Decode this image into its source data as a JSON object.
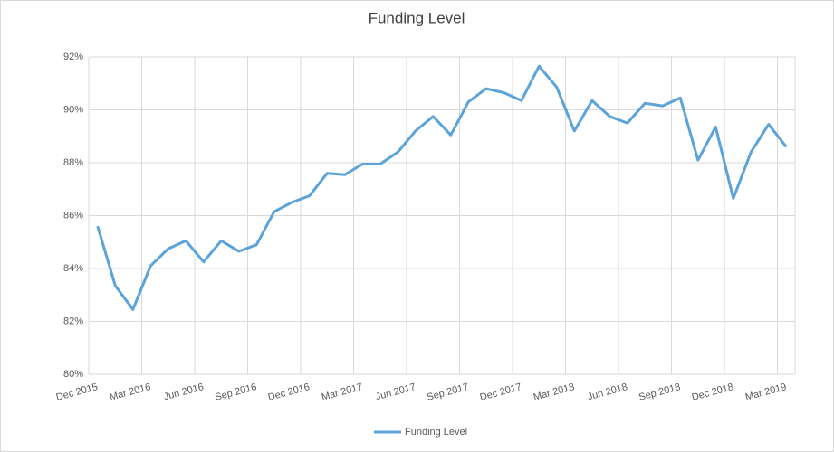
{
  "chart_data": {
    "type": "line",
    "title": "Funding Level",
    "categories": [
      "Dec 2015",
      null,
      null,
      "Mar 2016",
      null,
      null,
      "Jun 2016",
      null,
      null,
      "Sep 2016",
      null,
      null,
      "Dec 2016",
      null,
      null,
      "Mar 2017",
      null,
      null,
      "Jun 2017",
      null,
      null,
      "Sep 2017",
      null,
      null,
      "Dec 2017",
      null,
      null,
      "Mar 2018",
      null,
      null,
      "Jun 2018",
      null,
      null,
      "Sep 2018",
      null,
      null,
      "Dec 2018",
      null,
      null,
      "Mar 2019"
    ],
    "series": [
      {
        "name": "Funding Level",
        "color": "#5ba3d9",
        "values": [
          85.6,
          83.35,
          82.45,
          84.1,
          84.75,
          85.05,
          84.25,
          85.05,
          84.65,
          84.9,
          86.15,
          86.5,
          86.75,
          87.6,
          87.55,
          87.95,
          87.95,
          88.4,
          89.2,
          89.75,
          89.05,
          90.3,
          90.8,
          90.65,
          90.35,
          91.65,
          90.85,
          89.2,
          90.35,
          89.75,
          89.5,
          90.25,
          90.15,
          90.45,
          88.1,
          89.35,
          86.65,
          88.4,
          89.45,
          88.6
        ]
      }
    ],
    "ylim": [
      80,
      92
    ],
    "yticks": [
      {
        "value": 80,
        "label": "80%"
      },
      {
        "value": 82,
        "label": "82%"
      },
      {
        "value": 84,
        "label": "84%"
      },
      {
        "value": 86,
        "label": "86%"
      },
      {
        "value": 88,
        "label": "88%"
      },
      {
        "value": 90,
        "label": "90%"
      },
      {
        "value": 92,
        "label": "92%"
      }
    ],
    "grid": true,
    "legend": "bottom"
  }
}
